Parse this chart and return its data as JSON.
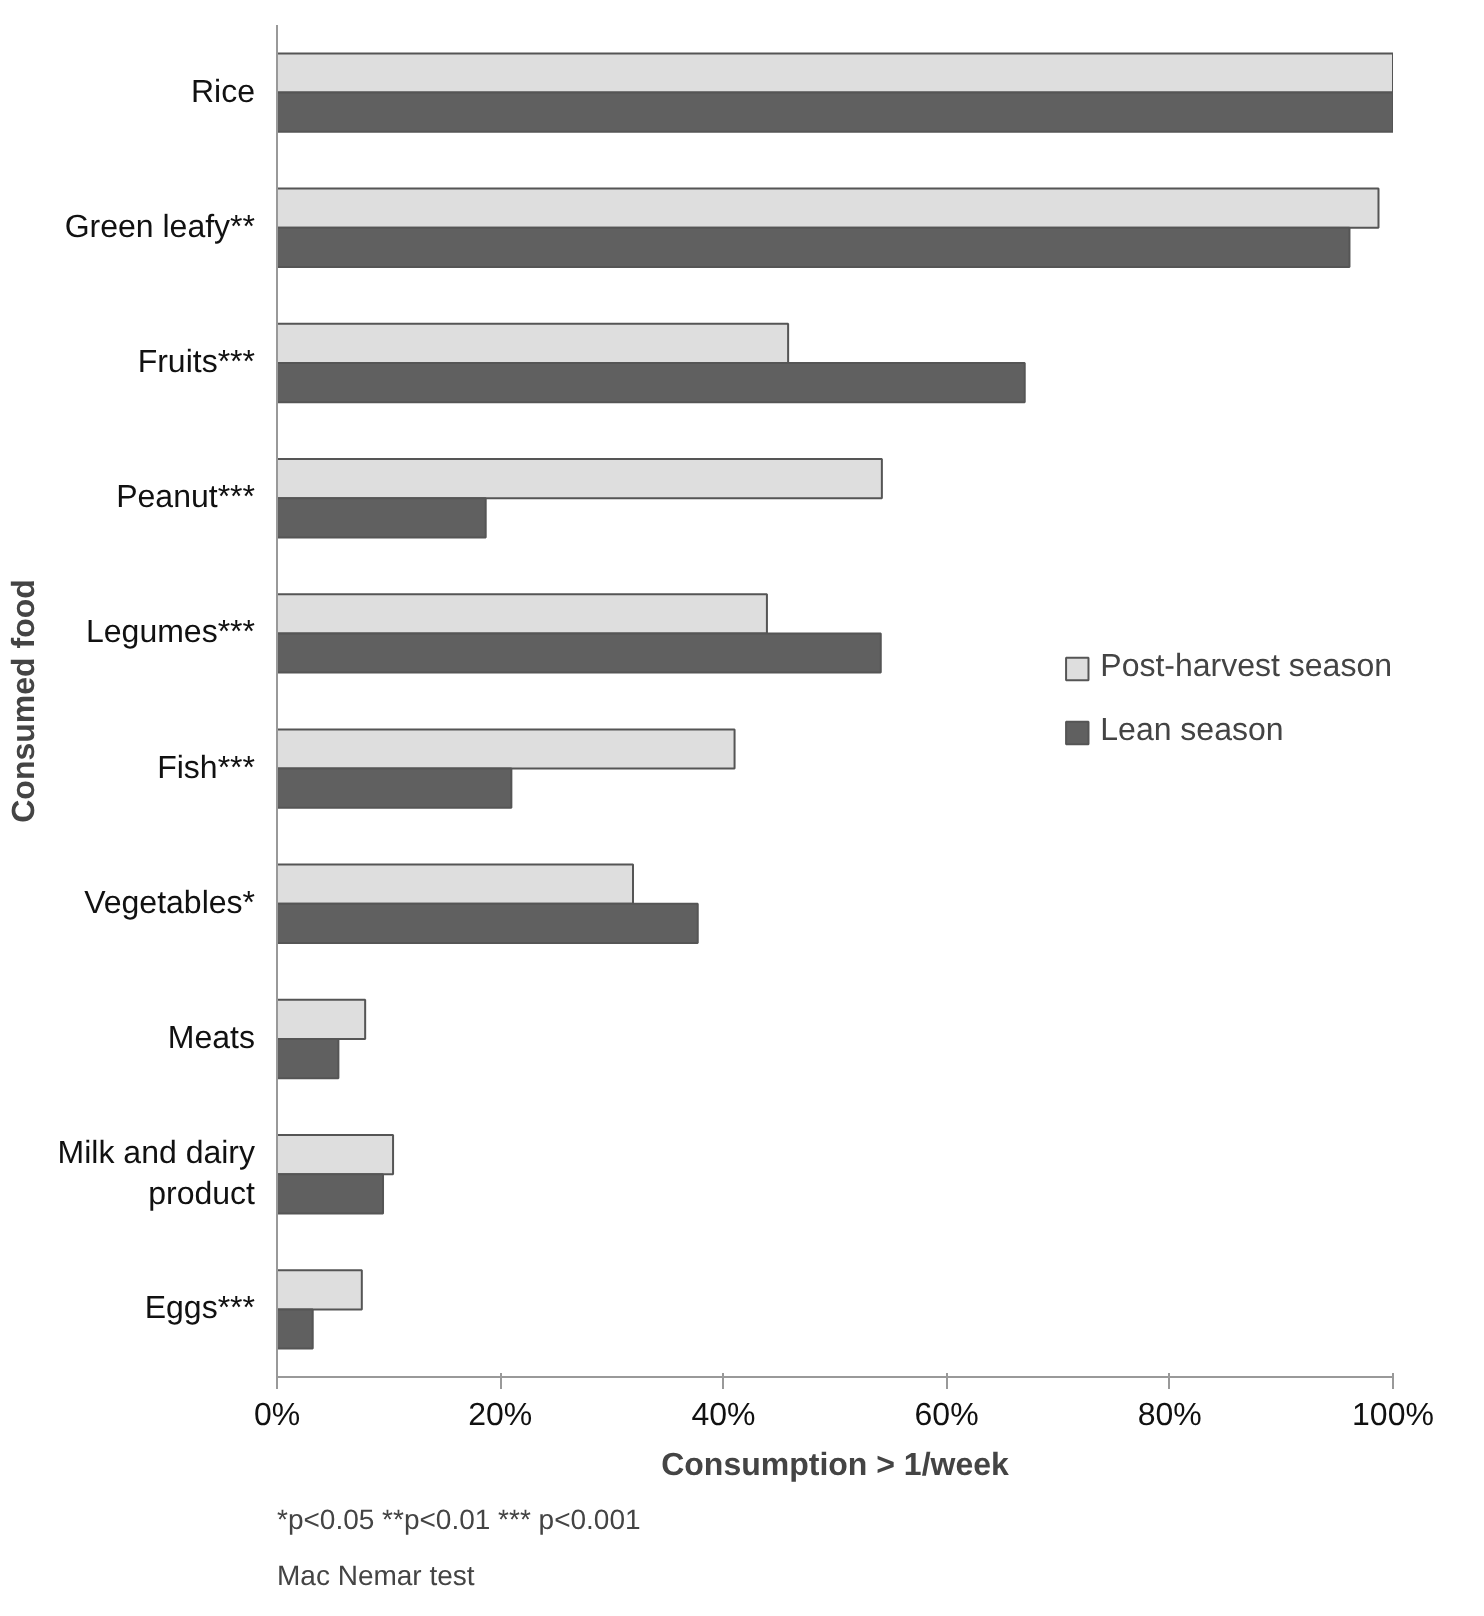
{
  "chart_data": {
    "type": "bar",
    "orientation": "horizontal",
    "categories": [
      "Rice",
      "Green leafy**",
      "Fruits***",
      "Peanut***",
      "Legumes***",
      "Fish***",
      "Vegetables*",
      "Meats",
      "Milk and dairy product",
      "Eggs***"
    ],
    "series": [
      {
        "name": "Post-harvest season",
        "color": "#dedede",
        "values": [
          100,
          98.7,
          45.8,
          54.2,
          43.9,
          41.0,
          31.9,
          7.9,
          10.4,
          7.6
        ]
      },
      {
        "name": "Lean season",
        "color": "#606060",
        "values": [
          100,
          96.1,
          67.0,
          18.7,
          54.1,
          21.0,
          37.7,
          5.5,
          9.5,
          3.2
        ]
      }
    ],
    "xlabel": "Consumption > 1/week",
    "ylabel": "Consumed food",
    "xlim": [
      0,
      100
    ],
    "xticks": [
      {
        "value": 0,
        "label": "0%"
      },
      {
        "value": 20,
        "label": "20%"
      },
      {
        "value": 40,
        "label": "40%"
      },
      {
        "value": 60,
        "label": "60%"
      },
      {
        "value": 80,
        "label": "80%"
      },
      {
        "value": 100,
        "label": "100%"
      }
    ],
    "annotations": [
      "*p<0.05     **p<0.01 ***    p<0.001",
      "Mac Nemar test"
    ],
    "legend": "right",
    "grid": false
  }
}
